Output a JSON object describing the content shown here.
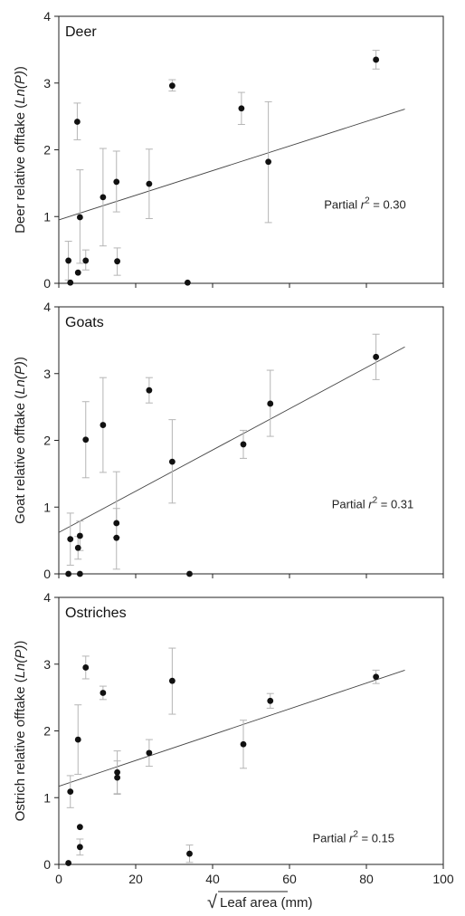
{
  "figure": {
    "x_axis_label": "Leaf area (mm)",
    "x_axis_label_radical": "√"
  },
  "chart_data": [
    {
      "type": "scatter",
      "panel_label": "Deer",
      "ylabel_prefix": "Deer relative offtake (",
      "ylabel_italic": "Ln(P)",
      "ylabel_suffix": ")",
      "annotation": {
        "prefix": "Partial ",
        "r": "r",
        "sup": "2",
        "value_text": " = 0.30"
      },
      "xlim": [
        0,
        100
      ],
      "ylim": [
        0,
        4
      ],
      "x_ticks": [
        0,
        20,
        40,
        60,
        80,
        100
      ],
      "x_ticks_labeled": false,
      "y_ticks": [
        0,
        1,
        2,
        3,
        4
      ],
      "points": [
        {
          "x": 2.5,
          "y": 0.34,
          "lo": 0.05,
          "hi": 0.63
        },
        {
          "x": 3.0,
          "y": 0.01,
          "lo": null,
          "hi": null
        },
        {
          "x": 4.8,
          "y": 2.42,
          "lo": 2.15,
          "hi": 2.7
        },
        {
          "x": 5.0,
          "y": 0.16,
          "lo": null,
          "hi": null
        },
        {
          "x": 5.5,
          "y": 0.99,
          "lo": 0.3,
          "hi": 1.7
        },
        {
          "x": 7.0,
          "y": 0.34,
          "lo": 0.2,
          "hi": 0.5
        },
        {
          "x": 11.5,
          "y": 1.29,
          "lo": 0.56,
          "hi": 2.02
        },
        {
          "x": 15.0,
          "y": 1.52,
          "lo": 1.07,
          "hi": 1.98
        },
        {
          "x": 15.2,
          "y": 0.33,
          "lo": 0.12,
          "hi": 0.53
        },
        {
          "x": 23.5,
          "y": 1.49,
          "lo": 0.97,
          "hi": 2.01
        },
        {
          "x": 29.5,
          "y": 2.96,
          "lo": 2.88,
          "hi": 3.05
        },
        {
          "x": 33.5,
          "y": 0.01,
          "lo": null,
          "hi": null
        },
        {
          "x": 47.5,
          "y": 2.62,
          "lo": 2.38,
          "hi": 2.86
        },
        {
          "x": 54.5,
          "y": 1.82,
          "lo": 0.91,
          "hi": 2.72
        },
        {
          "x": 82.5,
          "y": 3.35,
          "lo": 3.21,
          "hi": 3.49
        }
      ],
      "fit_line": {
        "x": [
          0,
          90
        ],
        "y": [
          0.95,
          2.61
        ]
      }
    },
    {
      "type": "scatter",
      "panel_label": "Goats",
      "ylabel_prefix": "Goat relative offtake (",
      "ylabel_italic": "Ln(P)",
      "ylabel_suffix": ")",
      "annotation": {
        "prefix": "Partial ",
        "r": "r",
        "sup": "2",
        "value_text": " = 0.31"
      },
      "xlim": [
        0,
        100
      ],
      "ylim": [
        0,
        4
      ],
      "x_ticks": [
        0,
        20,
        40,
        60,
        80,
        100
      ],
      "x_ticks_labeled": false,
      "y_ticks": [
        0,
        1,
        2,
        3,
        4
      ],
      "points": [
        {
          "x": 2.5,
          "y": 0.0,
          "lo": null,
          "hi": null
        },
        {
          "x": 3.0,
          "y": 0.52,
          "lo": 0.13,
          "hi": 0.91
        },
        {
          "x": 5.0,
          "y": 0.39,
          "lo": 0.22,
          "hi": 0.56
        },
        {
          "x": 5.5,
          "y": 0.57,
          "lo": 0.35,
          "hi": 0.79
        },
        {
          "x": 5.5,
          "y": 0.0,
          "lo": null,
          "hi": null
        },
        {
          "x": 7.0,
          "y": 2.01,
          "lo": 1.44,
          "hi": 2.58
        },
        {
          "x": 11.5,
          "y": 2.23,
          "lo": 1.52,
          "hi": 2.94
        },
        {
          "x": 15.0,
          "y": 0.76,
          "lo": 0.55,
          "hi": 0.98
        },
        {
          "x": 15.0,
          "y": 0.54,
          "lo": 0.07,
          "hi": 1.53
        },
        {
          "x": 23.5,
          "y": 2.75,
          "lo": 2.56,
          "hi": 2.94
        },
        {
          "x": 29.5,
          "y": 1.68,
          "lo": 1.06,
          "hi": 2.31
        },
        {
          "x": 34.0,
          "y": 0.0,
          "lo": null,
          "hi": null
        },
        {
          "x": 48.0,
          "y": 1.94,
          "lo": 1.73,
          "hi": 2.15
        },
        {
          "x": 55.0,
          "y": 2.55,
          "lo": 2.06,
          "hi": 3.05
        },
        {
          "x": 82.5,
          "y": 3.25,
          "lo": 2.91,
          "hi": 3.59
        }
      ],
      "fit_line": {
        "x": [
          0,
          90
        ],
        "y": [
          0.62,
          3.4
        ]
      }
    },
    {
      "type": "scatter",
      "panel_label": "Ostriches",
      "ylabel_prefix": "Ostrich relative offtake (",
      "ylabel_italic": "Ln(P)",
      "ylabel_suffix": ")",
      "annotation": {
        "prefix": "Partial ",
        "r": "r",
        "sup": "2",
        "value_text": " = 0.15"
      },
      "xlim": [
        0,
        100
      ],
      "ylim": [
        0,
        4
      ],
      "x_ticks": [
        0,
        20,
        40,
        60,
        80,
        100
      ],
      "x_ticks_labeled": true,
      "x_tick_labels": [
        "0",
        "20",
        "40",
        "60",
        "80",
        "100"
      ],
      "y_ticks": [
        0,
        1,
        2,
        3,
        4
      ],
      "points": [
        {
          "x": 2.5,
          "y": 0.02,
          "lo": null,
          "hi": null
        },
        {
          "x": 3.0,
          "y": 1.09,
          "lo": 0.85,
          "hi": 1.33
        },
        {
          "x": 5.0,
          "y": 1.87,
          "lo": 1.35,
          "hi": 2.39
        },
        {
          "x": 5.5,
          "y": 0.56,
          "lo": null,
          "hi": null
        },
        {
          "x": 5.5,
          "y": 0.26,
          "lo": 0.14,
          "hi": 0.38
        },
        {
          "x": 7.0,
          "y": 2.95,
          "lo": 2.78,
          "hi": 3.12
        },
        {
          "x": 11.5,
          "y": 2.57,
          "lo": 2.47,
          "hi": 2.67
        },
        {
          "x": 15.2,
          "y": 1.38,
          "lo": 1.06,
          "hi": 1.7
        },
        {
          "x": 15.2,
          "y": 1.3,
          "lo": 1.05,
          "hi": 1.55
        },
        {
          "x": 23.5,
          "y": 1.67,
          "lo": 1.47,
          "hi": 1.87
        },
        {
          "x": 29.5,
          "y": 2.75,
          "lo": 2.25,
          "hi": 3.24
        },
        {
          "x": 34.0,
          "y": 0.16,
          "lo": 0.03,
          "hi": 0.29
        },
        {
          "x": 48.0,
          "y": 1.8,
          "lo": 1.44,
          "hi": 2.16
        },
        {
          "x": 55.0,
          "y": 2.45,
          "lo": 2.34,
          "hi": 2.56
        },
        {
          "x": 82.5,
          "y": 2.81,
          "lo": 2.71,
          "hi": 2.91
        }
      ],
      "fit_line": {
        "x": [
          0,
          90
        ],
        "y": [
          1.17,
          2.91
        ]
      }
    }
  ]
}
